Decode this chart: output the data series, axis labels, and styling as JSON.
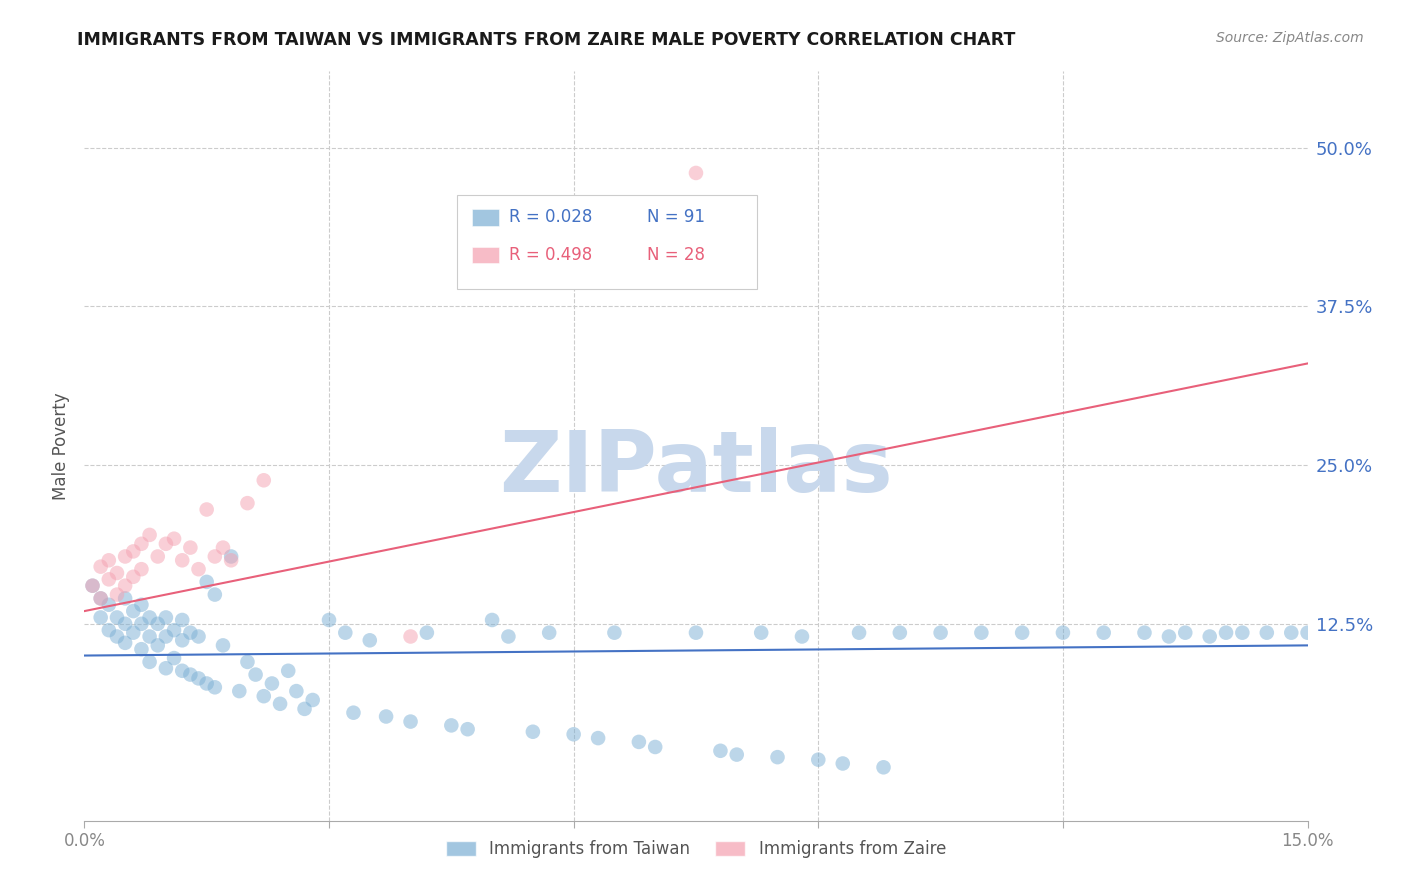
{
  "title": "IMMIGRANTS FROM TAIWAN VS IMMIGRANTS FROM ZAIRE MALE POVERTY CORRELATION CHART",
  "source": "Source: ZipAtlas.com",
  "ylabel": "Male Poverty",
  "ytick_labels": [
    "50.0%",
    "37.5%",
    "25.0%",
    "12.5%"
  ],
  "ytick_values": [
    0.5,
    0.375,
    0.25,
    0.125
  ],
  "xmin": 0.0,
  "xmax": 0.15,
  "ymin": -0.03,
  "ymax": 0.56,
  "taiwan_R": "0.028",
  "taiwan_N": "91",
  "zaire_R": "0.498",
  "zaire_N": "28",
  "taiwan_color": "#7BAFD4",
  "zaire_color": "#F4A0B0",
  "taiwan_line_color": "#4472C4",
  "zaire_line_color": "#E8607A",
  "watermark_text": "ZIPatlas",
  "watermark_color": "#C8D8EC",
  "legend_taiwan": "Immigrants from Taiwan",
  "legend_zaire": "Immigrants from Zaire",
  "taiwan_x": [
    0.001,
    0.002,
    0.002,
    0.003,
    0.003,
    0.004,
    0.004,
    0.005,
    0.005,
    0.005,
    0.006,
    0.006,
    0.007,
    0.007,
    0.007,
    0.008,
    0.008,
    0.008,
    0.009,
    0.009,
    0.01,
    0.01,
    0.01,
    0.011,
    0.011,
    0.012,
    0.012,
    0.012,
    0.013,
    0.013,
    0.014,
    0.014,
    0.015,
    0.015,
    0.016,
    0.016,
    0.017,
    0.018,
    0.019,
    0.02,
    0.021,
    0.022,
    0.023,
    0.024,
    0.025,
    0.026,
    0.027,
    0.028,
    0.03,
    0.032,
    0.033,
    0.035,
    0.037,
    0.04,
    0.042,
    0.045,
    0.047,
    0.05,
    0.052,
    0.055,
    0.057,
    0.06,
    0.063,
    0.065,
    0.068,
    0.07,
    0.075,
    0.078,
    0.08,
    0.083,
    0.085,
    0.088,
    0.09,
    0.093,
    0.095,
    0.098,
    0.1,
    0.105,
    0.11,
    0.115,
    0.12,
    0.125,
    0.13,
    0.133,
    0.135,
    0.138,
    0.14,
    0.142,
    0.145,
    0.148,
    0.15
  ],
  "taiwan_y": [
    0.155,
    0.13,
    0.145,
    0.14,
    0.12,
    0.13,
    0.115,
    0.145,
    0.125,
    0.11,
    0.135,
    0.118,
    0.14,
    0.125,
    0.105,
    0.13,
    0.115,
    0.095,
    0.125,
    0.108,
    0.13,
    0.115,
    0.09,
    0.12,
    0.098,
    0.128,
    0.112,
    0.088,
    0.118,
    0.085,
    0.115,
    0.082,
    0.158,
    0.078,
    0.148,
    0.075,
    0.108,
    0.178,
    0.072,
    0.095,
    0.085,
    0.068,
    0.078,
    0.062,
    0.088,
    0.072,
    0.058,
    0.065,
    0.128,
    0.118,
    0.055,
    0.112,
    0.052,
    0.048,
    0.118,
    0.045,
    0.042,
    0.128,
    0.115,
    0.04,
    0.118,
    0.038,
    0.035,
    0.118,
    0.032,
    0.028,
    0.118,
    0.025,
    0.022,
    0.118,
    0.02,
    0.115,
    0.018,
    0.015,
    0.118,
    0.012,
    0.118,
    0.118,
    0.118,
    0.118,
    0.118,
    0.118,
    0.118,
    0.115,
    0.118,
    0.115,
    0.118,
    0.118,
    0.118,
    0.118,
    0.118
  ],
  "zaire_x": [
    0.001,
    0.002,
    0.002,
    0.003,
    0.003,
    0.004,
    0.004,
    0.005,
    0.005,
    0.006,
    0.006,
    0.007,
    0.007,
    0.008,
    0.009,
    0.01,
    0.011,
    0.012,
    0.013,
    0.014,
    0.015,
    0.016,
    0.017,
    0.018,
    0.02,
    0.022,
    0.04,
    0.075
  ],
  "zaire_y": [
    0.155,
    0.17,
    0.145,
    0.175,
    0.16,
    0.165,
    0.148,
    0.178,
    0.155,
    0.182,
    0.162,
    0.188,
    0.168,
    0.195,
    0.178,
    0.188,
    0.192,
    0.175,
    0.185,
    0.168,
    0.215,
    0.178,
    0.185,
    0.175,
    0.22,
    0.238,
    0.115,
    0.48
  ]
}
